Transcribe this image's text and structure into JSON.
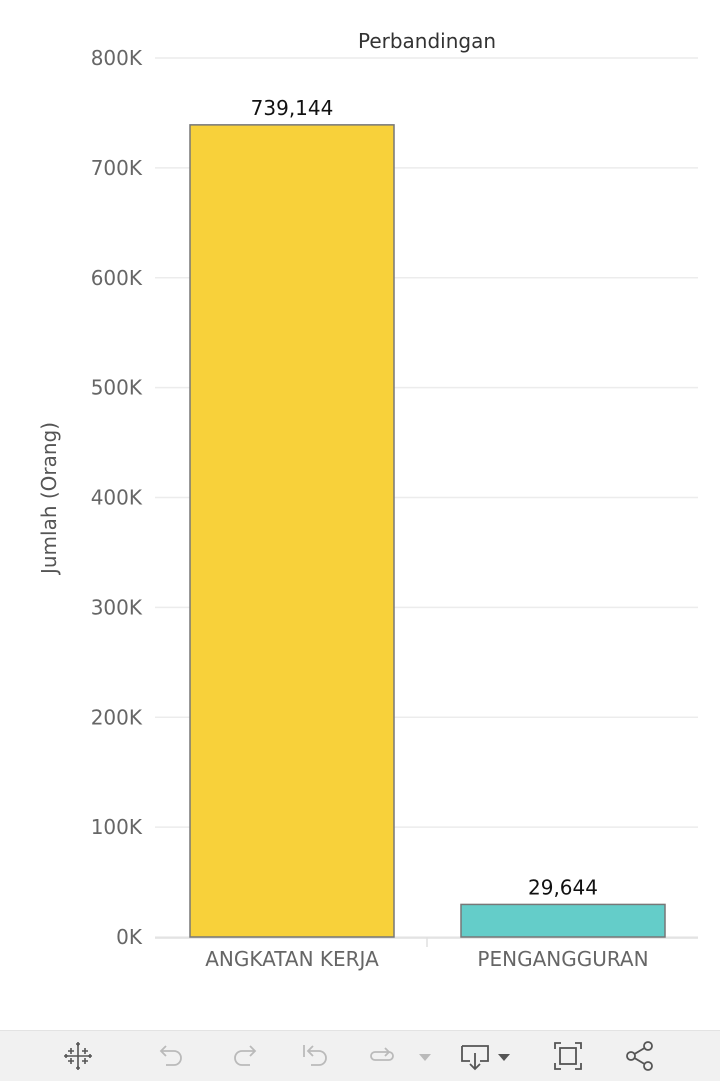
{
  "chart_data": {
    "type": "bar",
    "title": "Perbandingan",
    "xlabel": "",
    "ylabel": "Jumlah (Orang)",
    "ylim": [
      0,
      800000
    ],
    "yticks": [
      0,
      100000,
      200000,
      300000,
      400000,
      500000,
      600000,
      700000,
      800000
    ],
    "ytick_labels": [
      "0K",
      "100K",
      "200K",
      "300K",
      "400K",
      "500K",
      "600K",
      "700K",
      "800K"
    ],
    "categories": [
      "ANGKATAN KERJA",
      "PENGANGGURAN"
    ],
    "values": [
      739144,
      29644
    ],
    "data_labels": [
      "739,144",
      "29,644"
    ],
    "colors": [
      "#F8D13A",
      "#64CDC9"
    ],
    "grid": true,
    "legend": "none"
  },
  "toolbar": {
    "icons": [
      "tableau-logo-icon",
      "undo-icon",
      "redo-icon",
      "revert-icon",
      "refresh-icon",
      "pause-dropdown-icon",
      "download-icon",
      "fullscreen-icon",
      "share-icon"
    ]
  }
}
